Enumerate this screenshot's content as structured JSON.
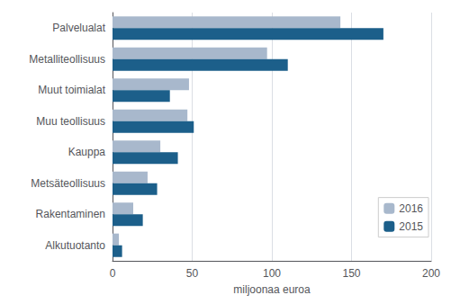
{
  "chart_data": {
    "type": "bar",
    "orientation": "horizontal",
    "categories": [
      "Palvelualat",
      "Metalliteollisuus",
      "Muut toimialat",
      "Muu teollisuus",
      "Kauppa",
      "Metsäteollisuus",
      "Rakentaminen",
      "Alkutuotanto"
    ],
    "series": [
      {
        "name": "2016",
        "color": "#a8b8cc",
        "values": [
          143,
          97,
          48,
          47,
          30,
          22,
          13,
          4
        ]
      },
      {
        "name": "2015",
        "color": "#1c5f8a",
        "values": [
          170,
          110,
          36,
          51,
          41,
          28,
          19,
          6
        ]
      }
    ],
    "xlabel": "miljoonaa euroa",
    "xlim": [
      0,
      200
    ],
    "xticks": [
      0,
      50,
      100,
      150,
      200
    ],
    "grid": true,
    "legend": "right"
  }
}
